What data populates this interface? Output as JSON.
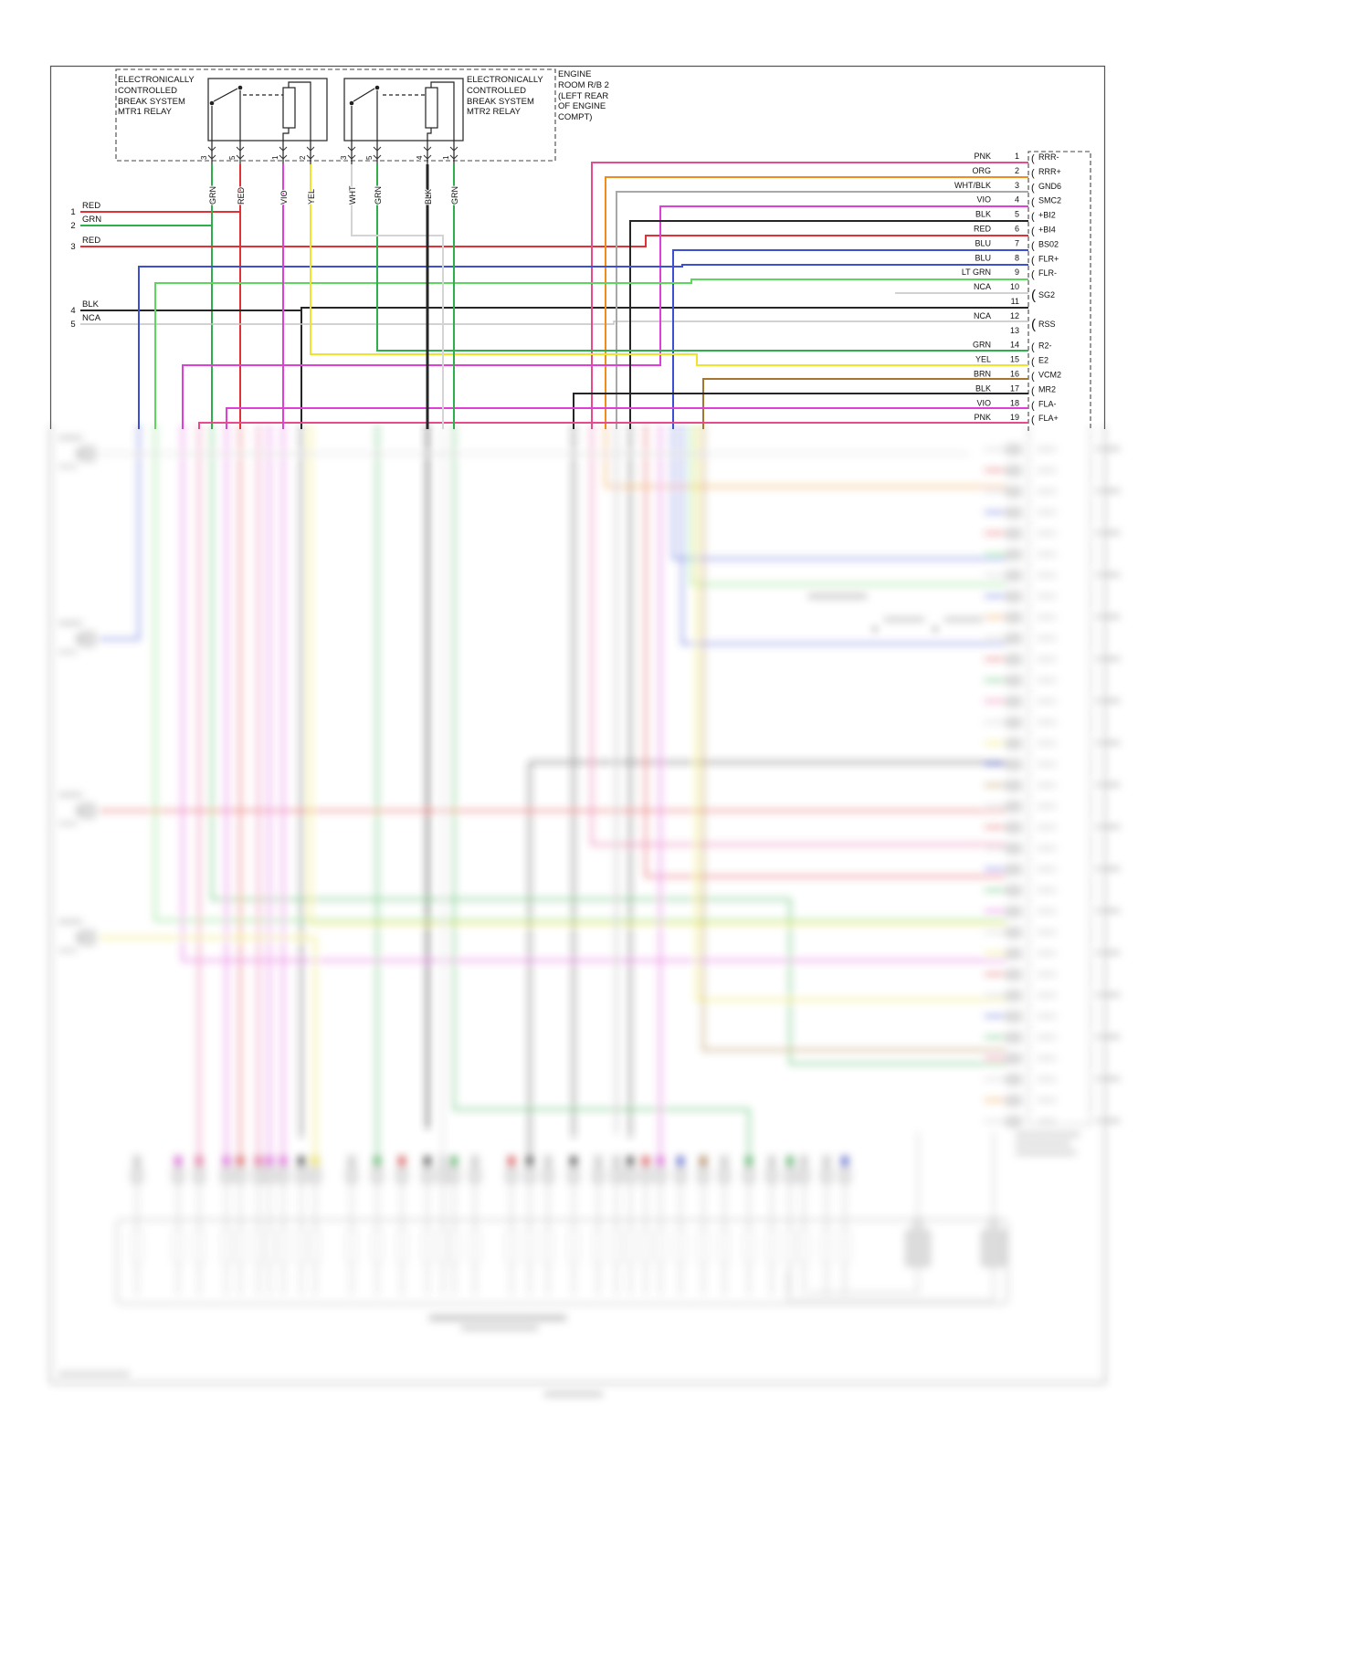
{
  "palette": {
    "GRN": "#2fae4c",
    "LT_GRN": "#5cd65c",
    "RED": "#df3136",
    "VIO": "#df3fd8",
    "YEL": "#f0e32c",
    "WHT": "#d4d4d4",
    "WHT_BLK": "#a8a8a8",
    "BLK": "#262626",
    "BLU": "#3d4fd3",
    "PNK": "#e64c8d",
    "ORG": "#f08c1e",
    "BRN": "#a6752f",
    "NCA": "#c4c4c4",
    "GRY": "#c6c6c6"
  },
  "header": {
    "enclosure_label": "ENGINE ROOM R/B 2 (LEFT REAR OF ENGINE COMPT)"
  },
  "relays": [
    {
      "label": "ELECTRONICALLY CONTROLLED BREAK SYSTEM MTR1 RELAY",
      "pins": [
        {
          "num": "3",
          "wire": "GRN"
        },
        {
          "num": "5",
          "wire": "RED"
        },
        {
          "num": "1",
          "wire": "VIO"
        },
        {
          "num": "2",
          "wire": "YEL"
        }
      ]
    },
    {
      "label": "ELECTRONICALLY CONTROLLED BREAK SYSTEM MTR2 RELAY",
      "pins": [
        {
          "num": "3",
          "wire": "WHT"
        },
        {
          "num": "5",
          "wire": "GRN"
        },
        {
          "num": "4",
          "wire": "BLK"
        },
        {
          "num": "1",
          "wire": "GRN"
        }
      ]
    }
  ],
  "left_wires": [
    {
      "num": "1",
      "wire": "RED"
    },
    {
      "num": "2",
      "wire": "GRN"
    },
    {
      "num": "3",
      "wire": "RED"
    },
    {
      "num": "4",
      "wire": "BLK"
    },
    {
      "num": "5",
      "wire": "NCA"
    }
  ],
  "right_connector": {
    "pins": [
      {
        "num": "1",
        "wire": "PNK",
        "signal": "RRR-"
      },
      {
        "num": "2",
        "wire": "ORG",
        "signal": "RRR+"
      },
      {
        "num": "3",
        "wire": "WHT/BLK",
        "signal": "GND6"
      },
      {
        "num": "4",
        "wire": "VIO",
        "signal": "SMC2"
      },
      {
        "num": "5",
        "wire": "BLK",
        "signal": "+BI2"
      },
      {
        "num": "6",
        "wire": "RED",
        "signal": "+BI4"
      },
      {
        "num": "7",
        "wire": "BLU",
        "signal": "BS02"
      },
      {
        "num": "8",
        "wire": "BLU",
        "signal": "FLR+"
      },
      {
        "num": "9",
        "wire": "LT GRN",
        "signal": "FLR-"
      },
      {
        "num": "10",
        "wire": "NCA",
        "signal": "SG2",
        "span": 2
      },
      {
        "num": "11",
        "wire": "",
        "signal": ""
      },
      {
        "num": "12",
        "wire": "NCA",
        "signal": "RSS",
        "span": 2
      },
      {
        "num": "13",
        "wire": "",
        "signal": ""
      },
      {
        "num": "14",
        "wire": "GRN",
        "signal": "R2-"
      },
      {
        "num": "15",
        "wire": "YEL",
        "signal": "E2"
      },
      {
        "num": "16",
        "wire": "BRN",
        "signal": "VCM2"
      },
      {
        "num": "17",
        "wire": "BLK",
        "signal": "MR2"
      },
      {
        "num": "18",
        "wire": "VIO",
        "signal": "FLA-"
      },
      {
        "num": "19",
        "wire": "PNK",
        "signal": "FLA+"
      }
    ]
  }
}
